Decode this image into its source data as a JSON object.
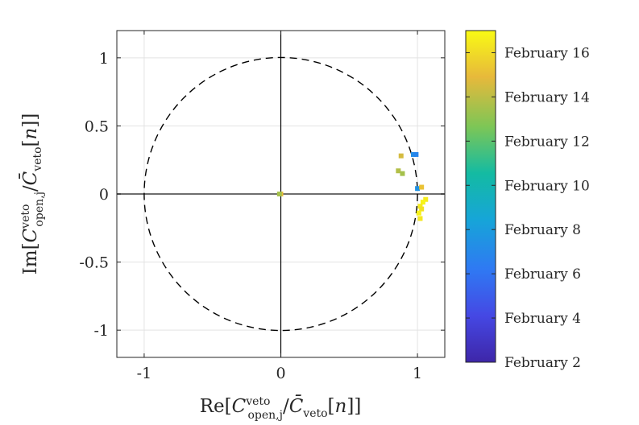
{
  "chart_data": {
    "type": "scatter",
    "xlabel": "Re[C_open,j^veto / C̄_veto[n]]",
    "ylabel": "Im[C_open,j^veto / C̄_veto[n]]",
    "xlim": [
      -1.2,
      1.2
    ],
    "ylim": [
      -1.2,
      1.2
    ],
    "x_ticks": [
      -1,
      0,
      1
    ],
    "x_tick_labels": [
      "-1",
      "0",
      "1"
    ],
    "y_ticks": [
      1,
      0.5,
      0,
      -0.5,
      -1
    ],
    "y_tick_labels": [
      "1",
      "0.5",
      "0",
      "-0.5",
      "-1"
    ],
    "grid": true,
    "unit_circle": "dashed",
    "colorbar": {
      "colormap": "parula",
      "range": [
        2,
        17
      ],
      "ticks": [
        16,
        14,
        12,
        10,
        8,
        6,
        4,
        2
      ],
      "labels": [
        "February 16",
        "February 14",
        "February 12",
        "February 10",
        "February 8",
        "February 6",
        "February 4",
        "February 2"
      ]
    },
    "points": [
      {
        "re": 0.0,
        "im": 0.0,
        "day": 15.0
      },
      {
        "re": -0.01,
        "im": 0.0,
        "day": 13.5
      },
      {
        "re": 0.88,
        "im": 0.28,
        "day": 14.5
      },
      {
        "re": 0.86,
        "im": 0.17,
        "day": 13.8
      },
      {
        "re": 0.89,
        "im": 0.15,
        "day": 13.5
      },
      {
        "re": 0.97,
        "im": 0.29,
        "day": 7.2
      },
      {
        "re": 0.99,
        "im": 0.29,
        "day": 6.8
      },
      {
        "re": 1.0,
        "im": 0.04,
        "day": 7.5
      },
      {
        "re": 1.03,
        "im": 0.05,
        "day": 15.2
      },
      {
        "re": 1.06,
        "im": -0.04,
        "day": 16.5
      },
      {
        "re": 1.04,
        "im": -0.06,
        "day": 16.8
      },
      {
        "re": 1.02,
        "im": -0.09,
        "day": 16.5
      },
      {
        "re": 1.03,
        "im": -0.11,
        "day": 16.2
      },
      {
        "re": 1.01,
        "im": -0.14,
        "day": 16.7
      },
      {
        "re": 1.02,
        "im": -0.18,
        "day": 16.4
      }
    ]
  }
}
